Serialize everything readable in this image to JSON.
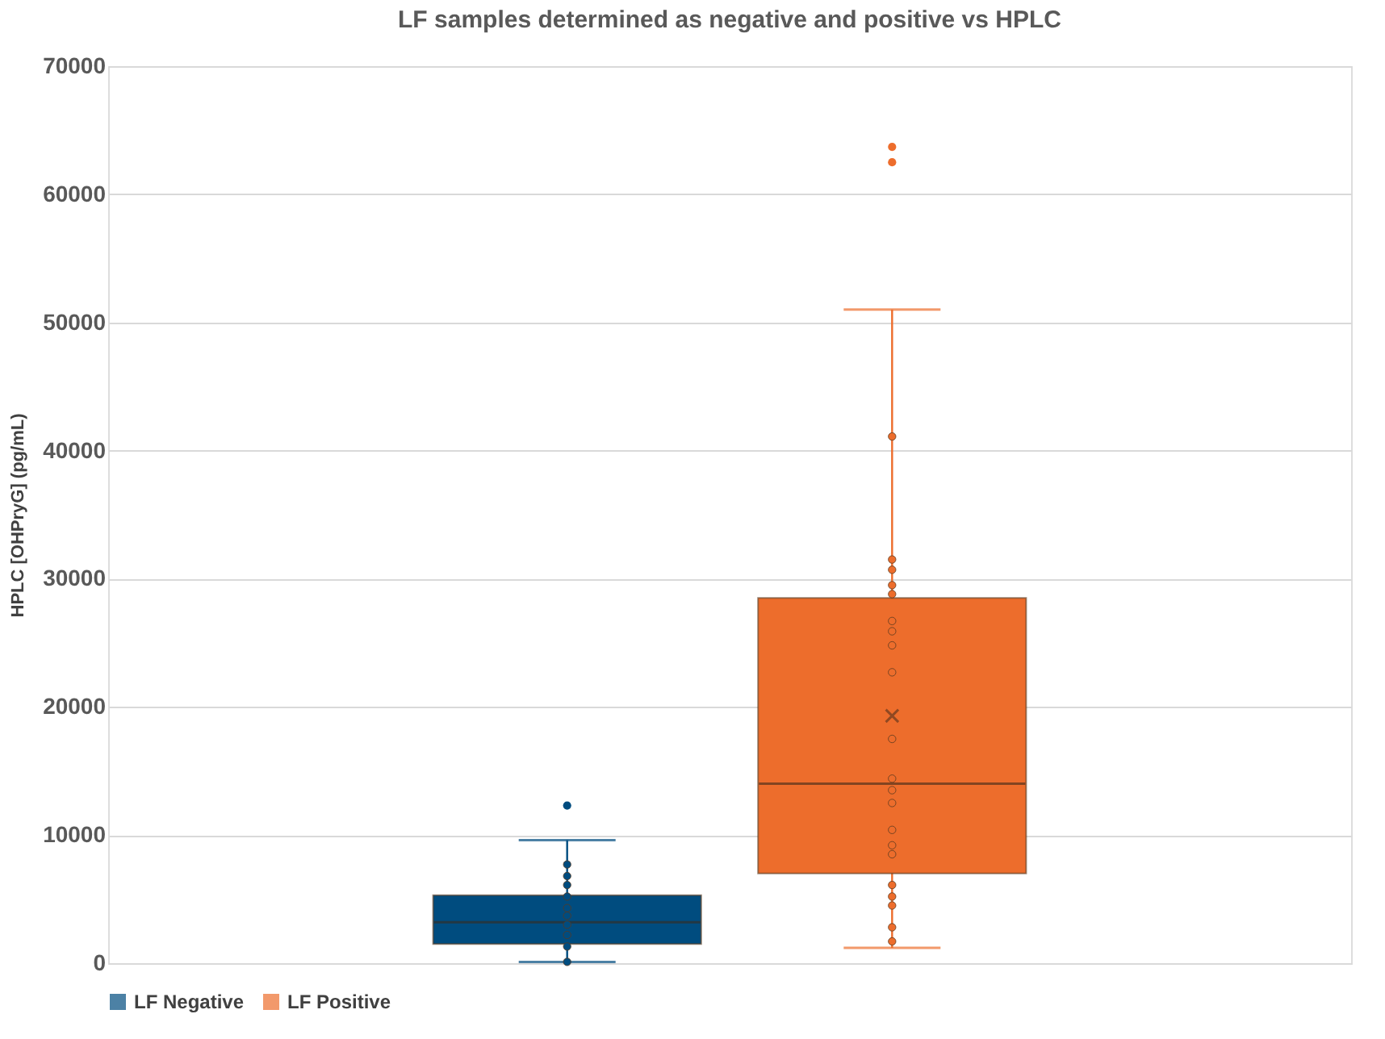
{
  "chart_data": {
    "type": "box",
    "title": "LF samples determined as negative and positive vs HPLC",
    "ylabel": "HPLC [OHPryG] (pg/mL)",
    "categories": [
      null
    ],
    "ylim": [
      0,
      70000
    ],
    "yticks": [
      0,
      10000,
      20000,
      30000,
      40000,
      50000,
      60000,
      70000
    ],
    "grid": "y",
    "legend": "bottom",
    "series": [
      {
        "name": "LF Negative",
        "color": "#004c7f",
        "boxes": [
          {
            "low": 100,
            "q1": 1500,
            "median": 3200,
            "q3": 5300,
            "high": 9600,
            "outliers": [
              12300
            ]
          }
        ]
      },
      {
        "name": "LF Positive",
        "color": "#ed6d2c",
        "boxes": [
          {
            "low": 1200,
            "q1": 7000,
            "median": 14000,
            "q3": 28500,
            "high": 51000,
            "mean": 19300,
            "outliers": [
              62500,
              63700
            ]
          }
        ]
      },
      {
        "type": "scatter",
        "color": "#004c7f",
        "x": [
          null,
          null,
          null,
          null,
          null,
          null,
          null,
          null,
          null,
          null
        ],
        "values": [
          7700,
          6800,
          6100,
          5200,
          4300,
          3700,
          3000,
          2200,
          1300,
          100
        ]
      },
      {
        "type": "scatter",
        "color": "#ed6d2c",
        "x": [
          null,
          null,
          null,
          null,
          null,
          null,
          null,
          null,
          null,
          null,
          null,
          null,
          null,
          null,
          null,
          null,
          null,
          null,
          null,
          null,
          null
        ],
        "values": [
          41100,
          31500,
          30700,
          29500,
          28800,
          26700,
          25900,
          24800,
          22700,
          17500,
          14400,
          13500,
          12500,
          10400,
          9200,
          8500,
          6100,
          5200,
          4500,
          2800,
          1700
        ]
      }
    ]
  }
}
